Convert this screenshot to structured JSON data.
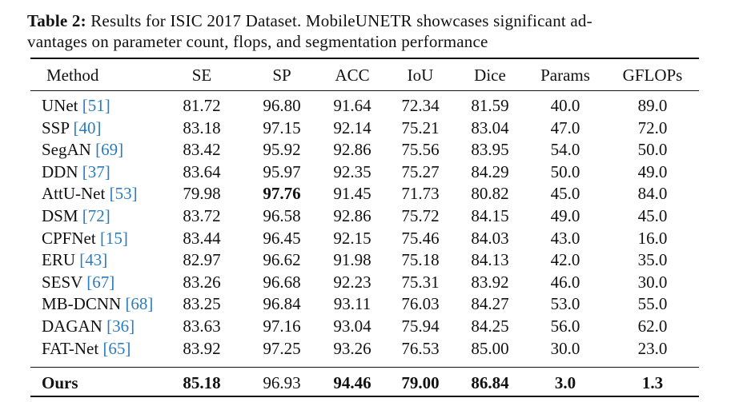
{
  "caption": {
    "label": "Table 2:",
    "lines": [
      "Results for ISIC 2017 Dataset. MobileUNETR showcases significant ad-",
      "vantages on parameter count, flops, and segmentation performance"
    ]
  },
  "table": {
    "header": [
      "Method",
      "SE",
      "SP",
      "ACC",
      "IoU",
      "Dice",
      "Params",
      "GFLOPs"
    ],
    "rows": [
      {
        "method": "UNet",
        "ref": "[51]",
        "values": [
          "81.72",
          "96.80",
          "91.64",
          "72.34",
          "81.59",
          "40.0",
          "89.0"
        ]
      },
      {
        "method": "SSP",
        "ref": "[40]",
        "values": [
          "83.18",
          "97.15",
          "92.14",
          "75.21",
          "83.04",
          "47.0",
          "72.0"
        ]
      },
      {
        "method": "SegAN",
        "ref": "[69]",
        "values": [
          "83.42",
          "95.92",
          "92.86",
          "75.56",
          "83.95",
          "54.0",
          "50.0"
        ]
      },
      {
        "method": "DDN",
        "ref": "[37]",
        "values": [
          "83.64",
          "95.97",
          "92.35",
          "75.27",
          "84.29",
          "50.0",
          "49.0"
        ]
      },
      {
        "method": "AttU-Net",
        "ref": "[53]",
        "values": [
          "79.98",
          "97.76",
          "91.45",
          "71.73",
          "80.82",
          "45.0",
          "84.0"
        ]
      },
      {
        "method": "DSM",
        "ref": "[72]",
        "values": [
          "83.72",
          "96.58",
          "92.86",
          "75.72",
          "84.15",
          "49.0",
          "45.0"
        ]
      },
      {
        "method": "CPFNet",
        "ref": "[15]",
        "values": [
          "83.44",
          "96.45",
          "92.15",
          "75.46",
          "84.03",
          "43.0",
          "16.0"
        ]
      },
      {
        "method": "ERU",
        "ref": "[43]",
        "values": [
          "82.97",
          "96.62",
          "91.98",
          "75.18",
          "84.13",
          "42.0",
          "35.0"
        ]
      },
      {
        "method": "SESV",
        "ref": "[67]",
        "values": [
          "83.26",
          "96.68",
          "92.23",
          "75.31",
          "83.92",
          "46.0",
          "30.0"
        ]
      },
      {
        "method": "MB-DCNN",
        "ref": "[68]",
        "values": [
          "83.25",
          "96.84",
          "93.11",
          "76.03",
          "84.27",
          "53.0",
          "55.0"
        ]
      },
      {
        "method": "DAGAN",
        "ref": "[36]",
        "values": [
          "83.63",
          "97.16",
          "93.04",
          "75.94",
          "84.25",
          "56.0",
          "62.0"
        ]
      },
      {
        "method": "FAT-Net",
        "ref": "[65]",
        "values": [
          "83.92",
          "97.25",
          "93.26",
          "76.53",
          "85.00",
          "30.0",
          "23.0"
        ]
      },
      {
        "method": "Ours",
        "values": [
          "85.18",
          "96.93",
          "94.46",
          "79.00",
          "86.84",
          "3.0",
          "1.3"
        ]
      }
    ]
  }
}
